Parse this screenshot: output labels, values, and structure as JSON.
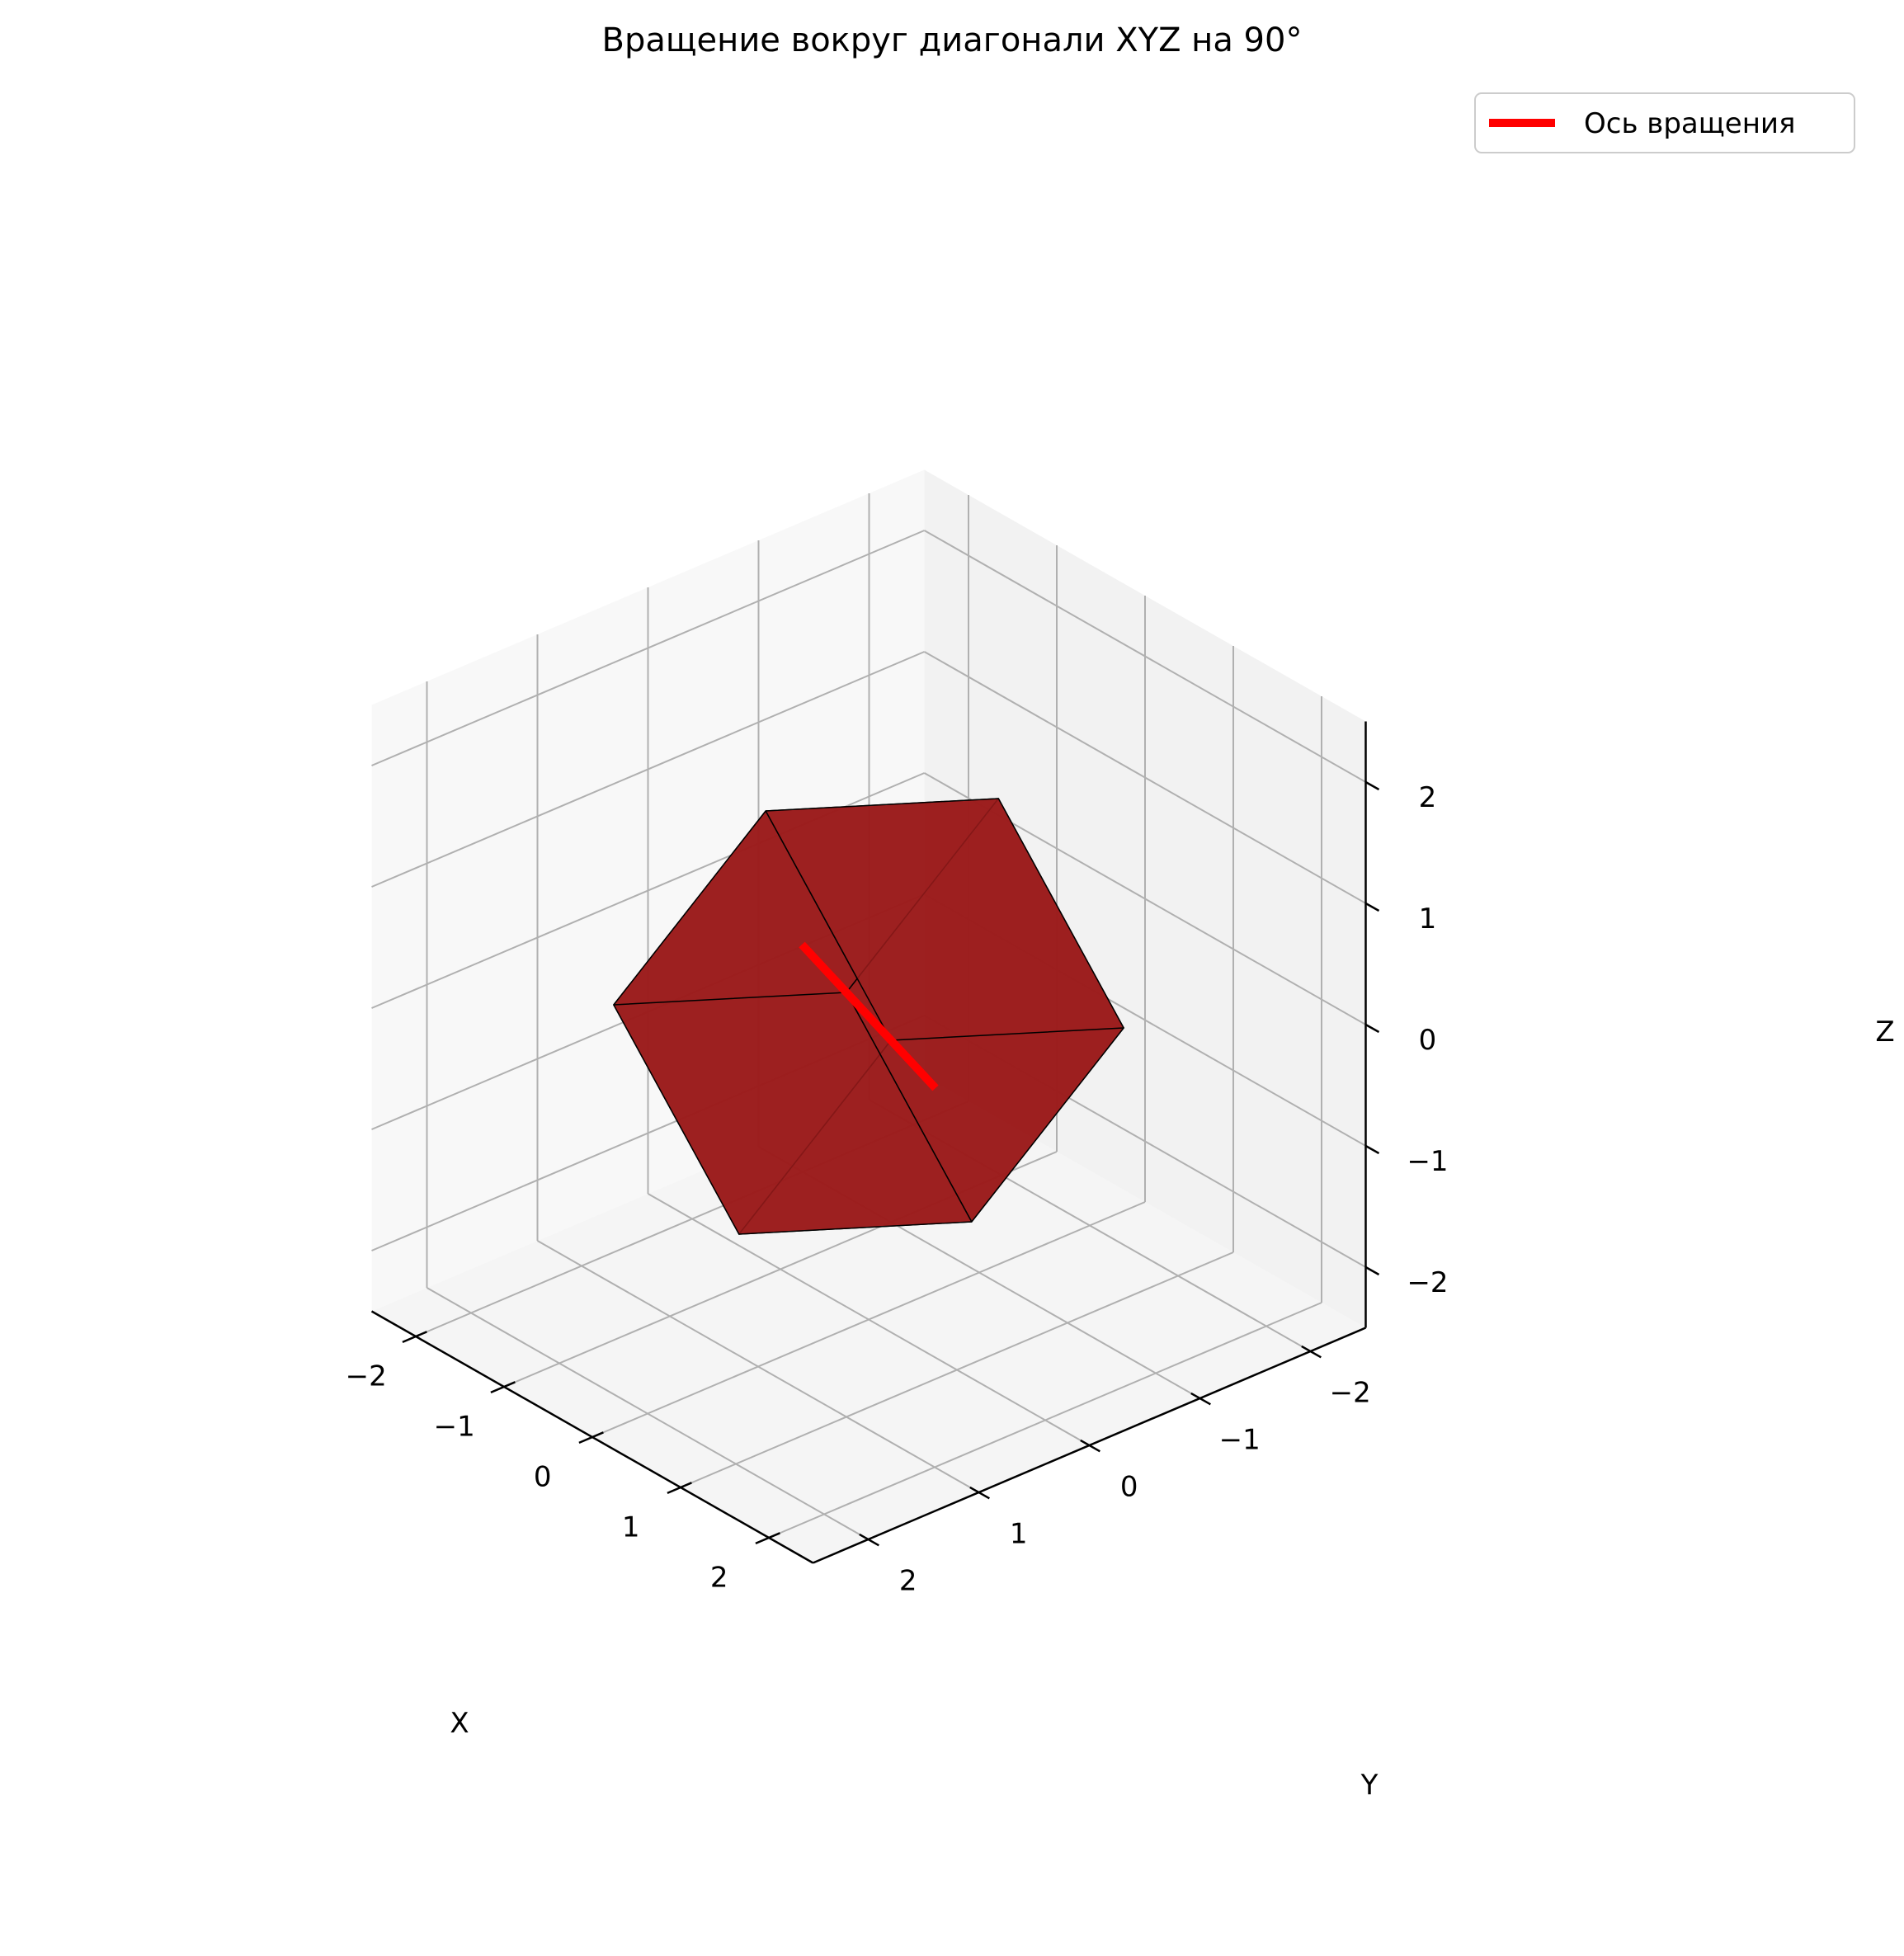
{
  "chart_data": {
    "type": "3d",
    "title": "Вращение вокруг диагонали XYZ на 90°",
    "xlabel": "X",
    "ylabel": "Y",
    "zlabel": "Z",
    "xlim": [
      -2.5,
      2.5
    ],
    "ylim": [
      -2.5,
      2.5
    ],
    "zlim": [
      -2.5,
      2.5
    ],
    "ticks": {
      "x": [
        {
          "value": -2,
          "label": "−2"
        },
        {
          "value": -1,
          "label": "−1"
        },
        {
          "value": 0,
          "label": "0"
        },
        {
          "value": 1,
          "label": "1"
        },
        {
          "value": 2,
          "label": "2"
        }
      ],
      "y": [
        {
          "value": -2,
          "label": "−2"
        },
        {
          "value": -1,
          "label": "−1"
        },
        {
          "value": 0,
          "label": "0"
        },
        {
          "value": 1,
          "label": "1"
        },
        {
          "value": 2,
          "label": "2"
        }
      ],
      "z": [
        {
          "value": -2,
          "label": "−2"
        },
        {
          "value": -1,
          "label": "−1"
        },
        {
          "value": 0,
          "label": "0"
        },
        {
          "value": 1,
          "label": "1"
        },
        {
          "value": 2,
          "label": "2"
        }
      ]
    },
    "grid": true,
    "legend": {
      "placement": "top-right",
      "entries": [
        {
          "label": "Ось вращения",
          "color": "#ff0000"
        }
      ]
    },
    "axis_line": {
      "name": "Ось вращения",
      "from": [
        -3,
        -3,
        -3
      ],
      "to": [
        3,
        3,
        3
      ],
      "color": "#ff0000"
    },
    "cube": {
      "face_color": "#9b1b1b",
      "opacity": 0.85,
      "edge_color": "#000000",
      "vertices": [
        [
          -1.0,
          -1.0,
          -1.0
        ],
        [
          -0.33,
          0.91,
          -1.58
        ],
        [
          1.58,
          0.33,
          -0.91
        ],
        [
          0.91,
          -1.58,
          -0.33
        ],
        [
          -0.91,
          1.58,
          0.33
        ],
        [
          -1.58,
          -0.33,
          0.91
        ],
        [
          0.33,
          -0.91,
          1.58
        ],
        [
          1.0,
          1.0,
          1.0
        ]
      ],
      "faces": [
        [
          0,
          1,
          2,
          3
        ],
        [
          5,
          4,
          7,
          6
        ],
        [
          0,
          1,
          4,
          5
        ],
        [
          3,
          2,
          7,
          6
        ],
        [
          0,
          3,
          6,
          5
        ],
        [
          1,
          2,
          7,
          4
        ]
      ]
    }
  },
  "colors": {
    "pane_left": "#f8f8f8",
    "pane_right": "#f2f2f2",
    "pane_floor": "#f5f5f5",
    "grid": "#b0b0b0"
  }
}
